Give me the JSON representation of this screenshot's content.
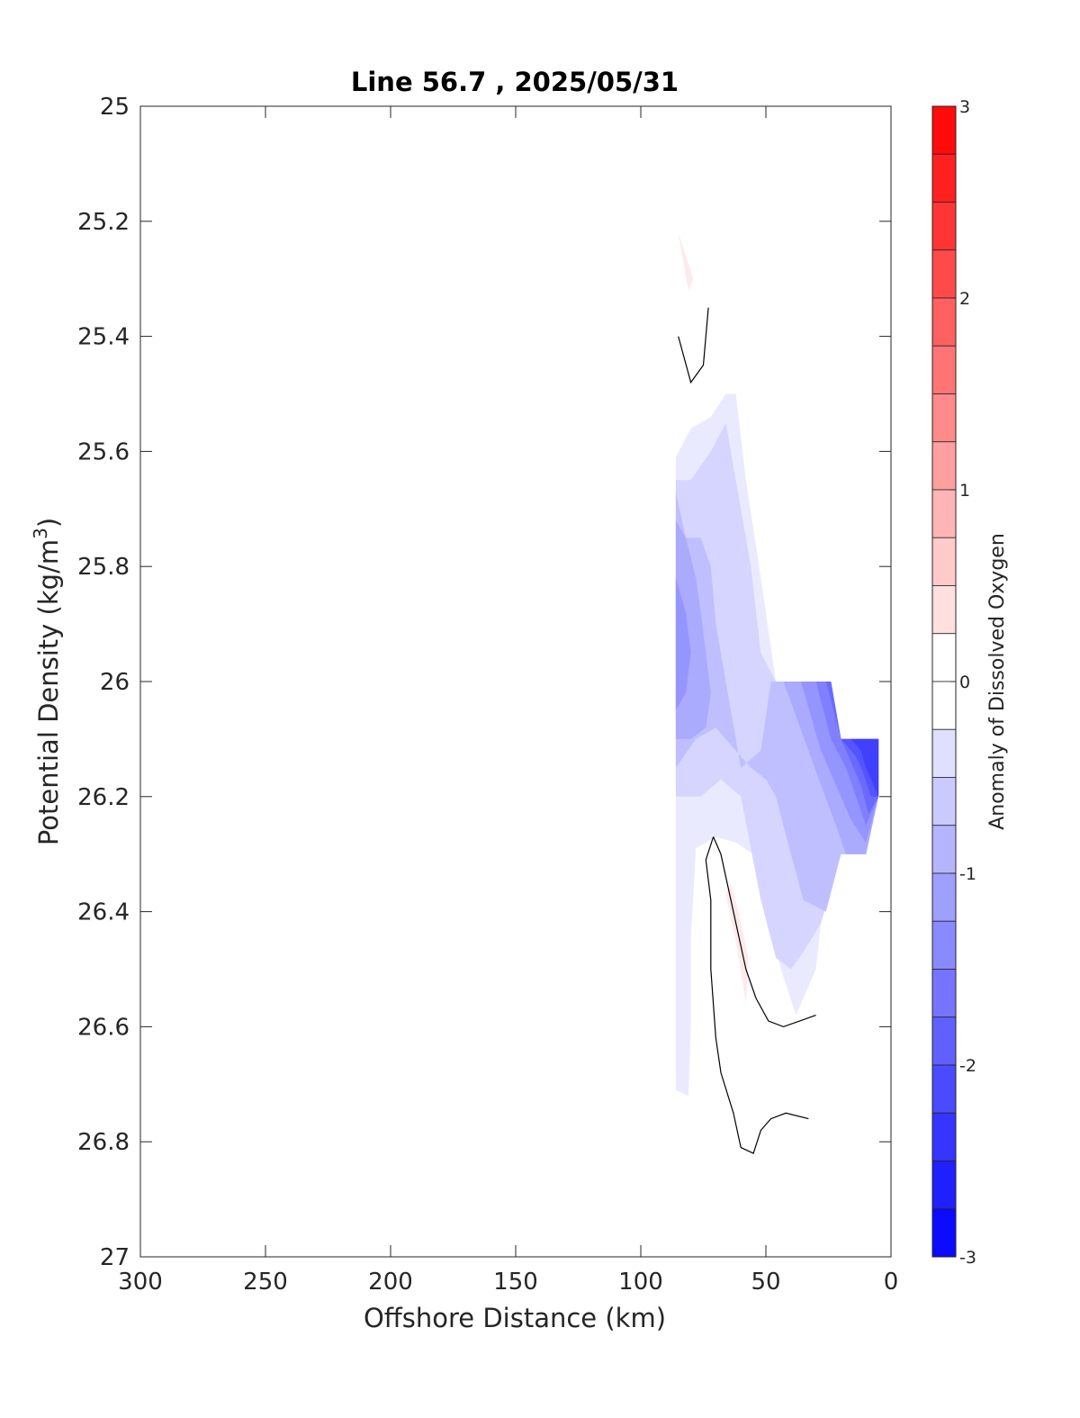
{
  "chart_data": {
    "type": "contour",
    "title": "Line 56.7 , 2025/05/31",
    "xlabel": "Offshore Distance (km)",
    "ylabel_main": "Potential Density (kg/m",
    "ylabel_sup": "3",
    "ylabel_end": ")",
    "xlim": [
      300,
      0
    ],
    "ylim": [
      25,
      27
    ],
    "x_ticks": [
      300,
      250,
      200,
      150,
      100,
      50,
      0
    ],
    "y_ticks": [
      25,
      25.2,
      25.4,
      25.6,
      25.8,
      26,
      26.2,
      26.4,
      26.6,
      26.8,
      27
    ],
    "x_tick_labels": [
      "300",
      "250",
      "200",
      "150",
      "100",
      "50",
      "0"
    ],
    "y_tick_labels": [
      "25",
      "25.2",
      "25.4",
      "25.6",
      "25.8",
      "26",
      "26.2",
      "26.4",
      "26.6",
      "26.8",
      "27"
    ],
    "colorbar": {
      "label": "Anomaly of Dissolved Oxygen",
      "range": [
        -3,
        3
      ],
      "step": 0.25,
      "ticks": [
        3,
        2,
        1,
        0,
        -1,
        -2,
        -3
      ],
      "tick_labels": [
        "3",
        "2",
        "1",
        "0",
        "-1",
        "-2",
        "-3"
      ],
      "positive_color": "#ff0000",
      "negative_color": "#0000ff"
    },
    "filled_regions": [
      {
        "level": -0.25,
        "points": [
          [
            86,
            25.61
          ],
          [
            80,
            25.56
          ],
          [
            72,
            25.54
          ],
          [
            66,
            25.5
          ],
          [
            62,
            25.5
          ],
          [
            58,
            25.65
          ],
          [
            52,
            25.82
          ],
          [
            46,
            26.0
          ],
          [
            24,
            26.0
          ],
          [
            20,
            26.1
          ],
          [
            5,
            26.1
          ],
          [
            5,
            26.2
          ],
          [
            10,
            26.3
          ],
          [
            20,
            26.3
          ],
          [
            28,
            26.42
          ],
          [
            30,
            26.5
          ],
          [
            38,
            26.58
          ],
          [
            44,
            26.5
          ],
          [
            50,
            26.4
          ],
          [
            55,
            26.3
          ],
          [
            62,
            26.28
          ],
          [
            70,
            26.27
          ],
          [
            78,
            26.29
          ],
          [
            80,
            26.45
          ],
          [
            80,
            26.6
          ],
          [
            81,
            26.72
          ],
          [
            86,
            26.71
          ]
        ]
      },
      {
        "level": -0.5,
        "points": [
          [
            86,
            25.65
          ],
          [
            80,
            25.65
          ],
          [
            72,
            25.6
          ],
          [
            66,
            25.55
          ],
          [
            60,
            25.7
          ],
          [
            56,
            25.8
          ],
          [
            52,
            25.95
          ],
          [
            46,
            26.0
          ],
          [
            24,
            26.0
          ],
          [
            20,
            26.1
          ],
          [
            5,
            26.1
          ],
          [
            5,
            26.2
          ],
          [
            10,
            26.3
          ],
          [
            20,
            26.3
          ],
          [
            28,
            26.42
          ],
          [
            35,
            26.47
          ],
          [
            40,
            26.5
          ],
          [
            46,
            26.48
          ],
          [
            52,
            26.38
          ],
          [
            60,
            26.2
          ],
          [
            68,
            26.17
          ],
          [
            76,
            26.2
          ],
          [
            86,
            26.2
          ]
        ]
      },
      {
        "level": -0.75,
        "points": [
          [
            86,
            25.67
          ],
          [
            82,
            25.75
          ],
          [
            76,
            25.75
          ],
          [
            72,
            25.8
          ],
          [
            70,
            25.9
          ],
          [
            66,
            26.0
          ],
          [
            62,
            26.1
          ],
          [
            60,
            26.15
          ],
          [
            52,
            26.12
          ],
          [
            48,
            26.0
          ],
          [
            24,
            26.0
          ],
          [
            20,
            26.1
          ],
          [
            5,
            26.1
          ],
          [
            5,
            26.2
          ],
          [
            10,
            26.3
          ],
          [
            20,
            26.3
          ],
          [
            26,
            26.4
          ],
          [
            35,
            26.38
          ],
          [
            40,
            26.3
          ],
          [
            46,
            26.2
          ],
          [
            50,
            26.17
          ],
          [
            56,
            26.15
          ],
          [
            62,
            26.12
          ],
          [
            70,
            26.08
          ],
          [
            78,
            26.1
          ],
          [
            86,
            26.15
          ]
        ]
      },
      {
        "level": -1.0,
        "points": [
          [
            86,
            25.72
          ],
          [
            82,
            25.75
          ],
          [
            78,
            25.82
          ],
          [
            76,
            25.88
          ],
          [
            74,
            25.95
          ],
          [
            72,
            26.02
          ],
          [
            74,
            26.08
          ],
          [
            80,
            26.1
          ],
          [
            86,
            26.1
          ]
        ]
      },
      {
        "level": -1.0,
        "points": [
          [
            43,
            26.0
          ],
          [
            24,
            26.0
          ],
          [
            20,
            26.1
          ],
          [
            5,
            26.1
          ],
          [
            5,
            26.2
          ],
          [
            10,
            26.3
          ],
          [
            18,
            26.3
          ],
          [
            22,
            26.25
          ],
          [
            28,
            26.18
          ],
          [
            33,
            26.12
          ],
          [
            38,
            26.06
          ]
        ]
      },
      {
        "level": -1.25,
        "points": [
          [
            86,
            25.82
          ],
          [
            82,
            25.88
          ],
          [
            80,
            25.95
          ],
          [
            82,
            26.02
          ],
          [
            86,
            26.05
          ]
        ]
      },
      {
        "level": -1.25,
        "points": [
          [
            36,
            26.0
          ],
          [
            24,
            26.0
          ],
          [
            20,
            26.1
          ],
          [
            5,
            26.1
          ],
          [
            5,
            26.2
          ],
          [
            10,
            26.28
          ],
          [
            16,
            26.24
          ],
          [
            22,
            26.18
          ],
          [
            28,
            26.12
          ],
          [
            32,
            26.06
          ]
        ]
      },
      {
        "level": -1.5,
        "points": [
          [
            30,
            26.0
          ],
          [
            24,
            26.0
          ],
          [
            20,
            26.1
          ],
          [
            5,
            26.1
          ],
          [
            5,
            26.2
          ],
          [
            10,
            26.25
          ],
          [
            14,
            26.2
          ],
          [
            18,
            26.15
          ],
          [
            24,
            26.1
          ],
          [
            27,
            26.05
          ]
        ]
      },
      {
        "level": -1.75,
        "points": [
          [
            26,
            26.0
          ],
          [
            24,
            26.0
          ],
          [
            20,
            26.1
          ],
          [
            5,
            26.1
          ],
          [
            5,
            26.2
          ],
          [
            9,
            26.23
          ],
          [
            12,
            26.18
          ],
          [
            16,
            26.14
          ],
          [
            20,
            26.1
          ]
        ]
      },
      {
        "level": -2.0,
        "points": [
          [
            20,
            26.1
          ],
          [
            5,
            26.1
          ],
          [
            5,
            26.2
          ],
          [
            8,
            26.2
          ],
          [
            11,
            26.16
          ],
          [
            14,
            26.13
          ]
        ]
      },
      {
        "level": -2.25,
        "points": [
          [
            16,
            26.1
          ],
          [
            5,
            26.1
          ],
          [
            5,
            26.2
          ],
          [
            7,
            26.18
          ],
          [
            10,
            26.15
          ],
          [
            12,
            26.12
          ]
        ]
      },
      {
        "level": 0.25,
        "points": [
          [
            85,
            25.22
          ],
          [
            81,
            25.32
          ],
          [
            79,
            25.3
          ]
        ]
      },
      {
        "level": 0.25,
        "points": [
          [
            66,
            26.37
          ],
          [
            62,
            26.45
          ],
          [
            58,
            26.56
          ],
          [
            57,
            26.48
          ],
          [
            61,
            26.4
          ],
          [
            64,
            26.35
          ]
        ]
      }
    ],
    "zero_contours": [
      {
        "points": [
          [
            85,
            25.4
          ],
          [
            80,
            25.48
          ],
          [
            75,
            25.45
          ],
          [
            73,
            25.35
          ]
        ]
      },
      {
        "points": [
          [
            71,
            26.27
          ],
          [
            74,
            26.31
          ],
          [
            72,
            26.38
          ],
          [
            72,
            26.5
          ],
          [
            70,
            26.62
          ],
          [
            68,
            26.68
          ],
          [
            63,
            26.75
          ],
          [
            60,
            26.81
          ],
          [
            55,
            26.82
          ],
          [
            52,
            26.78
          ],
          [
            48,
            26.76
          ],
          [
            42,
            26.75
          ],
          [
            33,
            26.76
          ]
        ]
      },
      {
        "points": [
          [
            71,
            26.27
          ],
          [
            68,
            26.3
          ],
          [
            63,
            26.4
          ],
          [
            58,
            26.5
          ],
          [
            54,
            26.55
          ],
          [
            49,
            26.59
          ],
          [
            43,
            26.6
          ],
          [
            30,
            26.58
          ]
        ]
      }
    ]
  }
}
